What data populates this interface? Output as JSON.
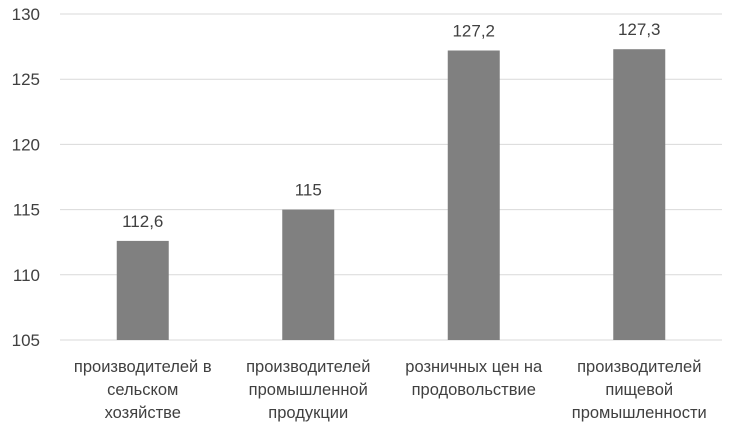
{
  "chart_data": {
    "type": "bar",
    "categories": [
      [
        "производителей в",
        "сельском",
        "хозяйстве"
      ],
      [
        "производителей",
        "промышленной",
        "продукции"
      ],
      [
        "розничных цен на",
        "продовольствие"
      ],
      [
        "производителей",
        "пищевой",
        "промышленности"
      ]
    ],
    "values": [
      112.6,
      115,
      127.2,
      127.3
    ],
    "data_labels": [
      "112,6",
      "115",
      "127,2",
      "127,3"
    ],
    "yticks": [
      105,
      110,
      115,
      120,
      125,
      130
    ],
    "ylim": [
      105,
      130
    ],
    "grid": true,
    "legend": "none",
    "title": "",
    "xlabel": "",
    "ylabel": "",
    "colors": {
      "bar": "#808080",
      "grid": "#d9d9d9",
      "text": "#404040"
    }
  }
}
